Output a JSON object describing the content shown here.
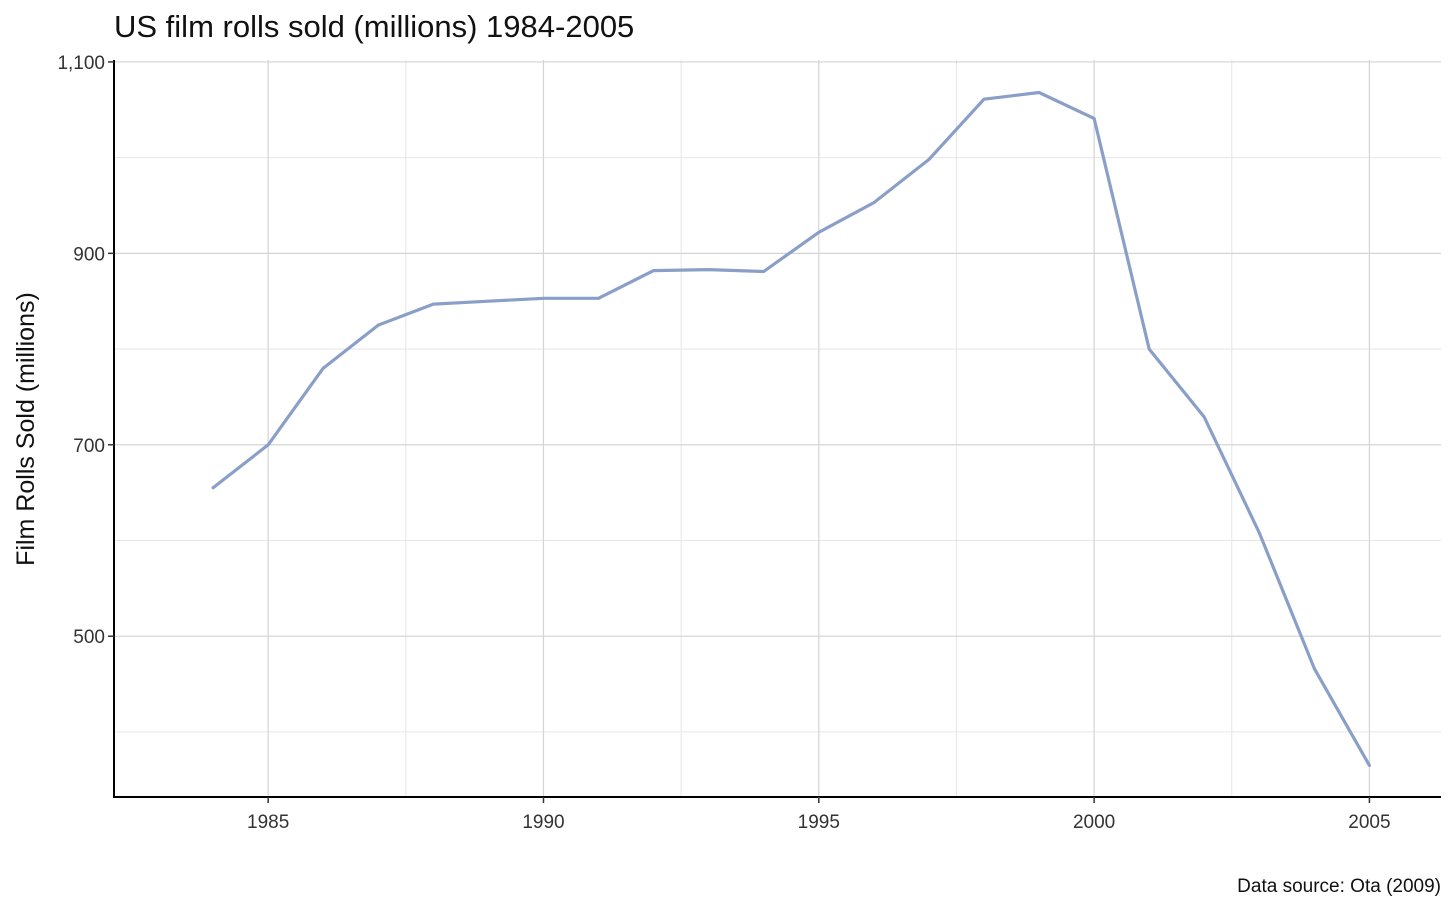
{
  "chart_data": {
    "type": "line",
    "title": "US film rolls sold (millions) 1984-2005",
    "xlabel": "",
    "ylabel": "Film Rolls Sold (millions)",
    "caption": "Data source: Ota (2009)",
    "x": [
      1984,
      1985,
      1986,
      1987,
      1988,
      1989,
      1990,
      1991,
      1992,
      1993,
      1994,
      1995,
      1996,
      1997,
      1998,
      1999,
      2000,
      2001,
      2002,
      2003,
      2004,
      2005
    ],
    "series": [
      {
        "values": [
          655,
          700,
          780,
          825,
          847,
          850,
          853,
          853,
          882,
          883,
          881,
          922,
          953,
          998,
          1061,
          1068,
          1041,
          800,
          729,
          608,
          466,
          365
        ]
      }
    ],
    "xlim": [
      1982.2,
      2006.3
    ],
    "ylim": [
      332,
      1102
    ],
    "x_ticks": [
      "1985",
      "1990",
      "1995",
      "2000",
      "2005"
    ],
    "x_tick_values": [
      1985,
      1990,
      1995,
      2000,
      2005
    ],
    "x_minor_values": [
      1987.5,
      1992.5,
      1997.5,
      2002.5
    ],
    "y_ticks": [
      "500",
      "700",
      "900",
      "1,100"
    ],
    "y_tick_values": [
      500,
      700,
      900,
      1100
    ],
    "y_minor_values": [
      400,
      600,
      800,
      1000
    ],
    "grid": true,
    "legend": "none",
    "colors": {
      "line": "#8a9fc8"
    }
  }
}
